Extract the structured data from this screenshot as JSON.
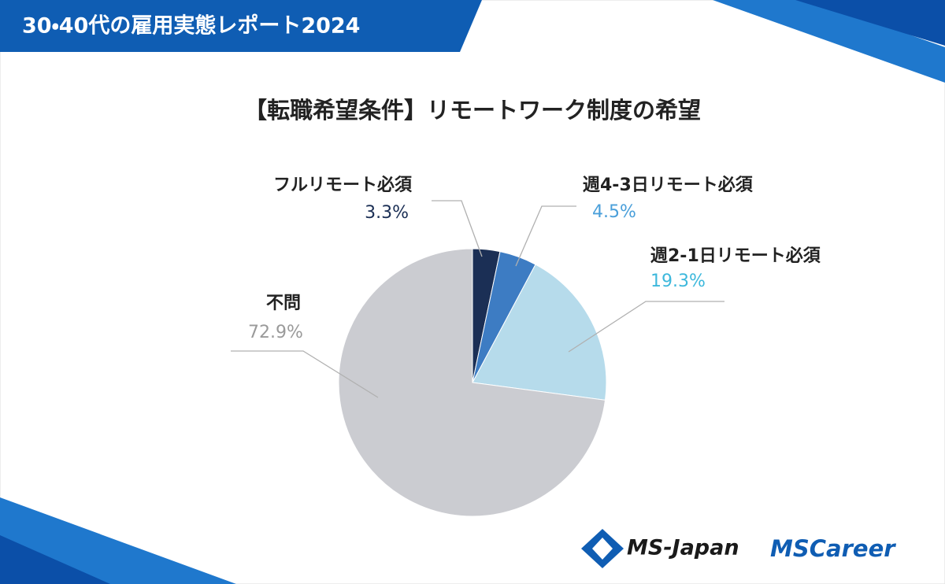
{
  "header": {
    "title": "30・40代の雇用実態レポート2024"
  },
  "chart_data": {
    "type": "pie",
    "title": "【転職希望条件】リモートワーク制度の希望",
    "categories": [
      "フルリモート必須",
      "週4-3日リモート必須",
      "週2-1日リモート必須",
      "不問"
    ],
    "values": [
      3.3,
      4.5,
      19.3,
      72.9
    ],
    "value_labels": [
      "3.3%",
      "4.5%",
      "19.3%",
      "72.9%"
    ],
    "colors": [
      "#1b2f55",
      "#3d7cc3",
      "#b6dbeb",
      "#cbccd1"
    ],
    "label_colors": [
      "#1b2f55",
      "#4a9fda",
      "#3db8dc",
      "#9a9a9a"
    ]
  },
  "footer": {
    "logos": [
      "MS-Japan",
      "MSCareer"
    ]
  }
}
